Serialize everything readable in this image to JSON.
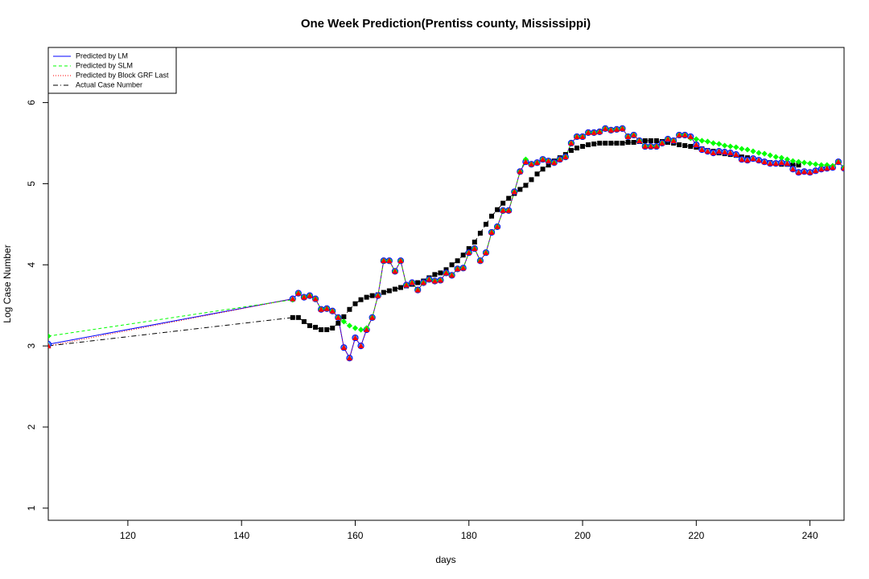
{
  "chart_data": {
    "type": "line",
    "title": "One Week Prediction(Prentiss county, Mississippi)",
    "x_label": "days",
    "y_label": "Log Case Number",
    "x": [
      106,
      149,
      150,
      151,
      152,
      153,
      154,
      155,
      156,
      157,
      158,
      159,
      160,
      161,
      162,
      163,
      164,
      165,
      166,
      167,
      168,
      169,
      170,
      171,
      172,
      173,
      174,
      175,
      176,
      177,
      178,
      179,
      180,
      181,
      182,
      183,
      184,
      185,
      186,
      187,
      188,
      189,
      190,
      191,
      192,
      193,
      194,
      195,
      196,
      197,
      198,
      199,
      200,
      201,
      202,
      203,
      204,
      205,
      206,
      207,
      208,
      209,
      210,
      211,
      212,
      213,
      214,
      215,
      216,
      217,
      218,
      219,
      220,
      221,
      222,
      223,
      224,
      225,
      226,
      227,
      228,
      229,
      230,
      231,
      232,
      233,
      234,
      235,
      236,
      237,
      238,
      239,
      240,
      241,
      242,
      243,
      244,
      245,
      246
    ],
    "series": [
      {
        "name": "Predicted by LM",
        "color": "#0000ff",
        "line_style": "solid",
        "marker": "circle",
        "values": [
          3.02,
          3.58,
          3.65,
          3.6,
          3.62,
          3.58,
          3.45,
          3.46,
          3.43,
          3.35,
          2.98,
          2.85,
          3.1,
          3.0,
          3.2,
          3.35,
          3.62,
          4.05,
          4.05,
          3.92,
          4.05,
          3.75,
          3.78,
          3.69,
          3.78,
          3.82,
          3.8,
          3.81,
          3.9,
          3.87,
          3.95,
          3.96,
          4.15,
          4.2,
          4.05,
          4.15,
          4.4,
          4.47,
          4.67,
          4.67,
          4.9,
          5.15,
          5.27,
          5.24,
          5.26,
          5.3,
          5.28,
          5.26,
          5.3,
          5.33,
          5.5,
          5.58,
          5.58,
          5.63,
          5.63,
          5.64,
          5.68,
          5.66,
          5.67,
          5.68,
          5.58,
          5.6,
          5.53,
          5.46,
          5.46,
          5.46,
          5.5,
          5.55,
          5.53,
          5.6,
          5.6,
          5.58,
          5.48,
          5.42,
          5.4,
          5.38,
          5.4,
          5.39,
          5.38,
          5.36,
          5.3,
          5.29,
          5.31,
          5.29,
          5.27,
          5.25,
          5.25,
          5.26,
          5.25,
          5.18,
          5.14,
          5.15,
          5.14,
          5.16,
          5.18,
          5.19,
          5.2,
          5.27,
          5.19
        ]
      },
      {
        "name": "Predicted by SLM",
        "color": "#00ff00",
        "line_style": "dashed",
        "marker": "diamond",
        "values": [
          3.12,
          3.57,
          3.65,
          3.6,
          3.62,
          3.58,
          3.45,
          3.46,
          3.43,
          3.35,
          3.3,
          3.25,
          3.22,
          3.2,
          3.22,
          3.35,
          3.62,
          4.05,
          4.05,
          3.92,
          4.05,
          3.75,
          3.78,
          3.69,
          3.78,
          3.82,
          3.8,
          3.81,
          3.9,
          3.87,
          3.95,
          3.96,
          4.15,
          4.2,
          4.05,
          4.15,
          4.4,
          4.47,
          4.67,
          4.67,
          4.9,
          5.15,
          5.3,
          5.24,
          5.26,
          5.3,
          5.28,
          5.26,
          5.3,
          5.33,
          5.5,
          5.58,
          5.58,
          5.63,
          5.63,
          5.64,
          5.68,
          5.66,
          5.67,
          5.68,
          5.58,
          5.6,
          5.53,
          5.46,
          5.46,
          5.46,
          5.5,
          5.55,
          5.53,
          5.6,
          5.6,
          5.56,
          5.55,
          5.53,
          5.52,
          5.5,
          5.49,
          5.47,
          5.46,
          5.45,
          5.43,
          5.42,
          5.4,
          5.38,
          5.37,
          5.35,
          5.33,
          5.32,
          5.3,
          5.28,
          5.27,
          5.26,
          5.25,
          5.24,
          5.23,
          5.23,
          5.22,
          5.27,
          5.2
        ]
      },
      {
        "name": "Predicted by Block GRF Last",
        "color": "#ff0000",
        "line_style": "dotted",
        "marker": "triangle",
        "values": [
          3.0,
          3.58,
          3.65,
          3.6,
          3.62,
          3.58,
          3.45,
          3.46,
          3.43,
          3.35,
          2.98,
          2.85,
          3.1,
          3.0,
          3.2,
          3.35,
          3.62,
          4.05,
          4.05,
          3.92,
          4.05,
          3.75,
          3.78,
          3.69,
          3.78,
          3.82,
          3.8,
          3.81,
          3.9,
          3.87,
          3.95,
          3.96,
          4.15,
          4.2,
          4.05,
          4.15,
          4.4,
          4.47,
          4.67,
          4.67,
          4.9,
          5.15,
          5.27,
          5.24,
          5.26,
          5.3,
          5.28,
          5.26,
          5.3,
          5.33,
          5.5,
          5.58,
          5.58,
          5.63,
          5.63,
          5.64,
          5.68,
          5.66,
          5.67,
          5.68,
          5.58,
          5.6,
          5.53,
          5.46,
          5.46,
          5.46,
          5.5,
          5.55,
          5.53,
          5.6,
          5.6,
          5.58,
          5.48,
          5.42,
          5.4,
          5.38,
          5.4,
          5.39,
          5.38,
          5.36,
          5.3,
          5.29,
          5.31,
          5.29,
          5.27,
          5.25,
          5.25,
          5.26,
          5.25,
          5.18,
          5.14,
          5.15,
          5.14,
          5.16,
          5.18,
          5.19,
          5.2,
          5.27,
          5.19
        ]
      },
      {
        "name": "Actual Case Number",
        "color": "#000000",
        "line_style": "dashdot",
        "marker": "square",
        "values": [
          3.0,
          3.35,
          3.35,
          3.3,
          3.25,
          3.23,
          3.2,
          3.2,
          3.22,
          3.28,
          3.36,
          3.45,
          3.52,
          3.57,
          3.6,
          3.62,
          3.63,
          3.66,
          3.68,
          3.7,
          3.72,
          3.74,
          3.76,
          3.78,
          3.8,
          3.84,
          3.88,
          3.9,
          3.94,
          4.0,
          4.05,
          4.12,
          4.2,
          4.28,
          4.39,
          4.5,
          4.6,
          4.68,
          4.76,
          4.82,
          4.88,
          4.93,
          4.98,
          5.05,
          5.12,
          5.18,
          5.23,
          5.28,
          5.32,
          5.36,
          5.41,
          5.44,
          5.46,
          5.48,
          5.49,
          5.5,
          5.5,
          5.5,
          5.5,
          5.5,
          5.51,
          5.51,
          5.52,
          5.53,
          5.53,
          5.53,
          5.52,
          5.51,
          5.5,
          5.48,
          5.47,
          5.46,
          5.45,
          5.43,
          5.41,
          5.4,
          5.38,
          5.37,
          5.36,
          5.35,
          5.33,
          5.32,
          5.31,
          5.29,
          5.27,
          5.26,
          5.25,
          5.24,
          5.24,
          5.23,
          5.23,
          null,
          null,
          null,
          null,
          null,
          null,
          null,
          null
        ]
      }
    ],
    "xlim": [
      106,
      246
    ],
    "xticks": [
      120,
      140,
      160,
      180,
      200,
      220,
      240
    ],
    "ylim": [
      0.85,
      6.68
    ],
    "yticks": [
      1,
      2,
      3,
      4,
      5,
      6
    ],
    "legend": "top-left",
    "grid": false
  }
}
